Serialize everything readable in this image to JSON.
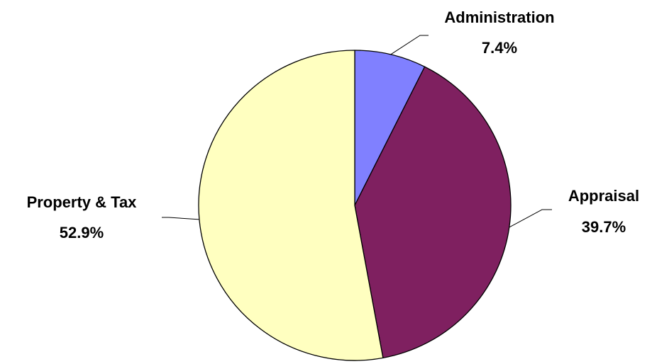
{
  "chart_data": {
    "type": "pie",
    "start_angle_deg": 0,
    "direction": "clockwise",
    "slices": [
      {
        "name": "Administration",
        "value": 7.4,
        "value_label": "7.4%",
        "color": "#8080ff"
      },
      {
        "name": "Appraisal",
        "value": 39.7,
        "value_label": "39.7%",
        "color": "#7f2060"
      },
      {
        "name": "Property & Tax",
        "value": 52.9,
        "value_label": "52.9%",
        "color": "#ffffc0"
      }
    ]
  }
}
